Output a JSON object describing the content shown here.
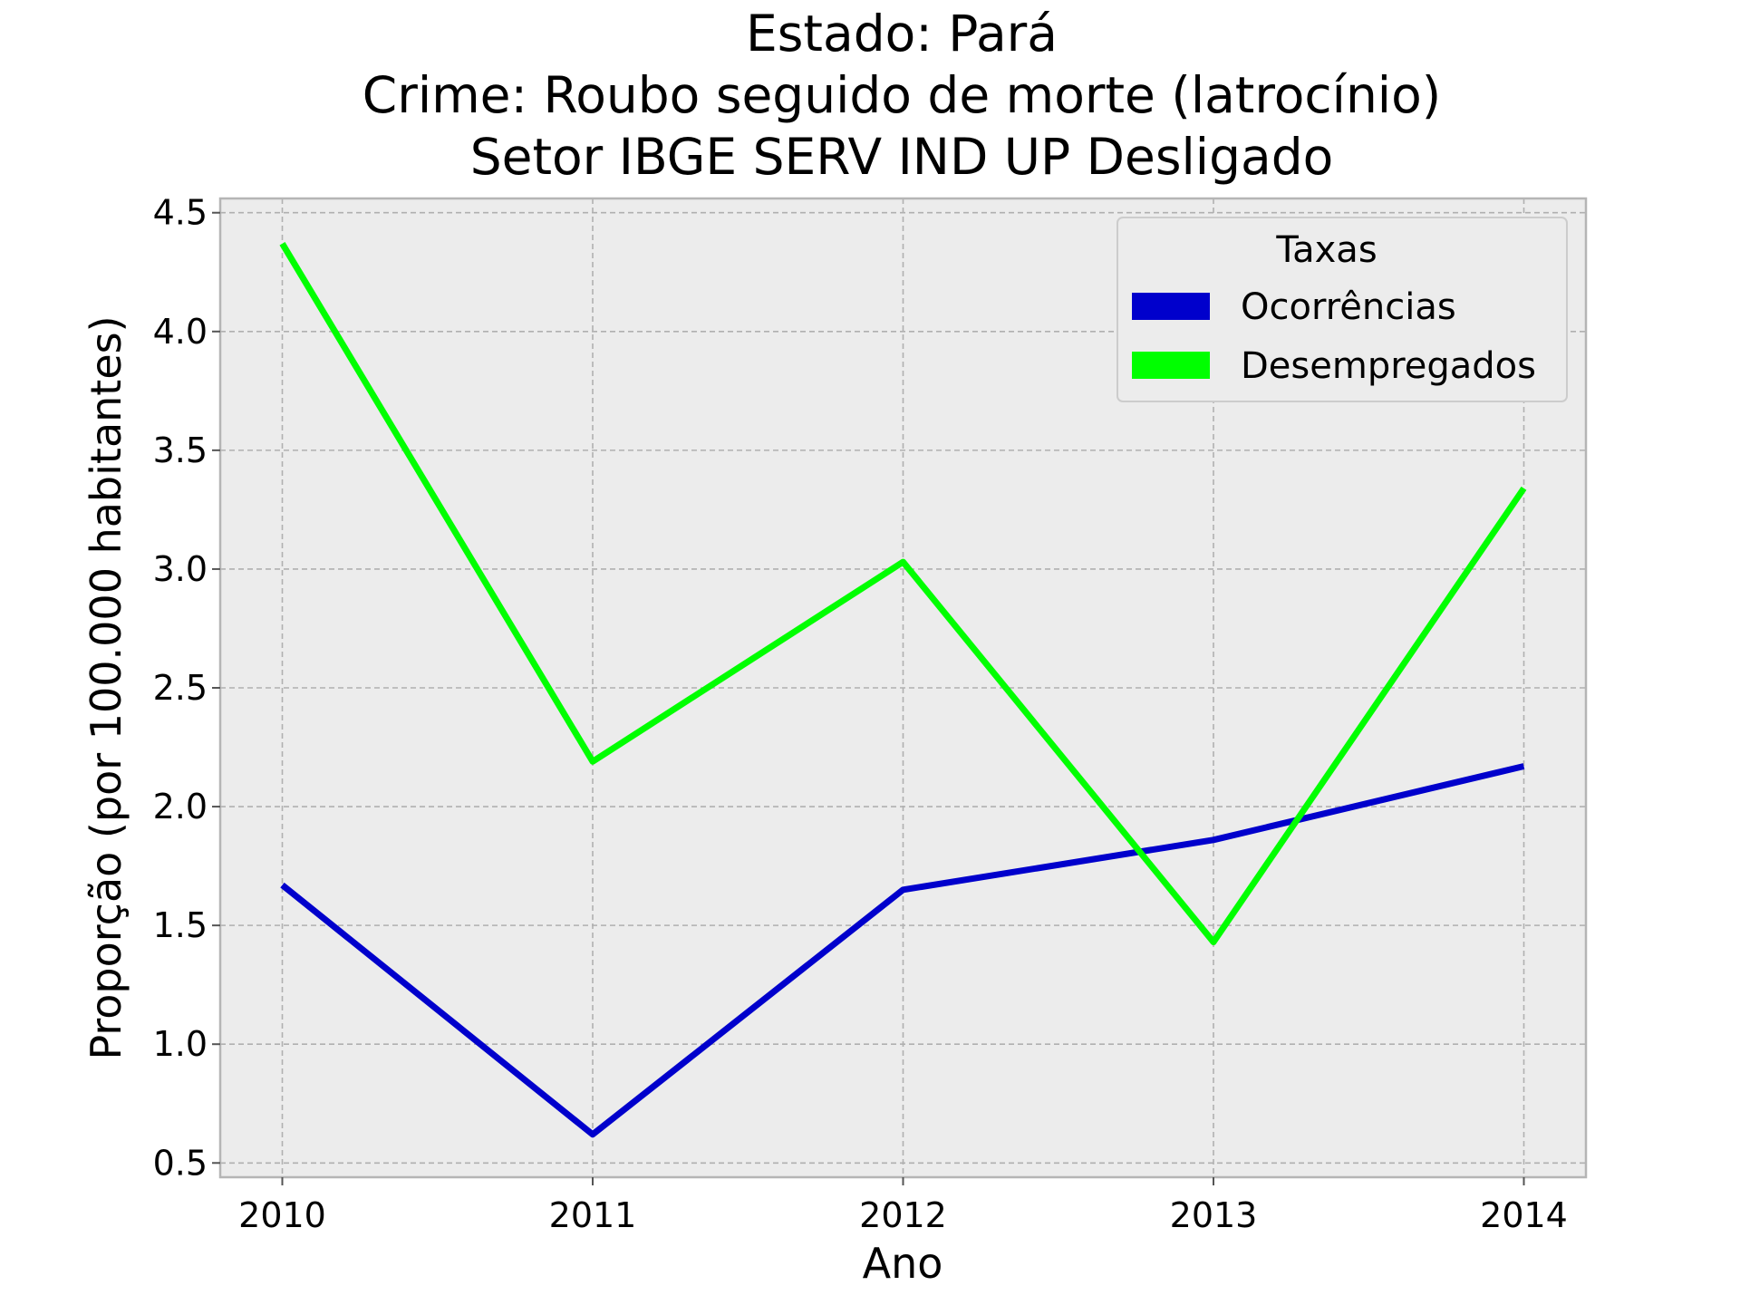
{
  "chart_data": {
    "type": "line",
    "title_lines": [
      "Estado: Pará",
      "Crime: Roubo seguido de morte (latrocínio)",
      "Setor IBGE  SERV IND UP   Desligado"
    ],
    "xlabel": "Ano",
    "ylabel": "Proporção (por 100.000 habitantes)",
    "x": [
      2010,
      2011,
      2012,
      2013,
      2014
    ],
    "x_tick_labels": [
      "2010",
      "2011",
      "2012",
      "2013",
      "2014"
    ],
    "xlim": [
      2009.8,
      2014.2
    ],
    "ylim": [
      0.44,
      4.56
    ],
    "y_ticks": [
      0.5,
      1.0,
      1.5,
      2.0,
      2.5,
      3.0,
      3.5,
      4.0,
      4.5
    ],
    "y_tick_labels": [
      "0.5",
      "1.0",
      "1.5",
      "2.0",
      "2.5",
      "3.0",
      "3.5",
      "4.0",
      "4.5"
    ],
    "grid": true,
    "legend": {
      "title": "Taxas",
      "placement": "top-right"
    },
    "series": [
      {
        "name": "Ocorrências",
        "color": "#0000cc",
        "values": [
          1.67,
          0.62,
          1.65,
          1.86,
          2.17
        ]
      },
      {
        "name": "Desempregados",
        "color": "#00ff00",
        "values": [
          4.37,
          2.19,
          3.03,
          1.43,
          3.34
        ]
      }
    ],
    "colors": {
      "plot_background": "#ececec",
      "frame": "#b5b5b5",
      "grid": "#b0b0b0"
    }
  }
}
